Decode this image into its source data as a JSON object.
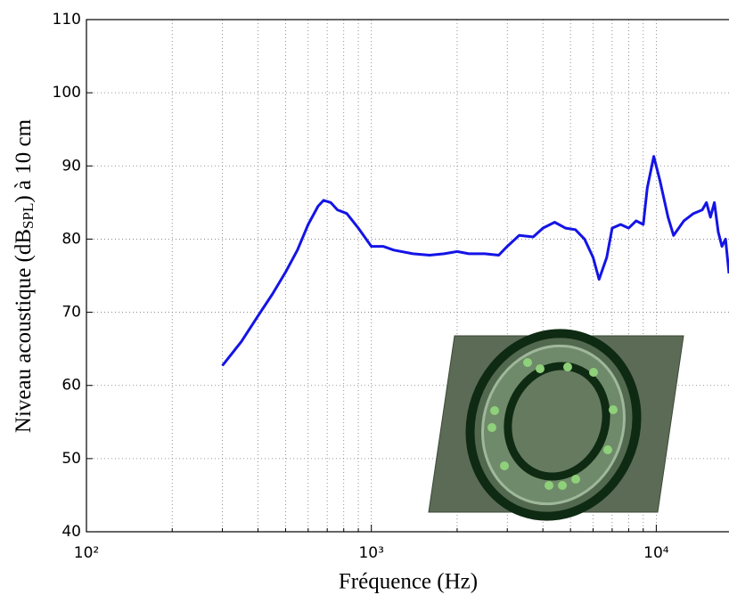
{
  "chart_data": {
    "type": "line",
    "xlabel": "Fréquence (Hz)",
    "ylabel": {
      "main": "Niveau acoustique (dB",
      "subscript": "SPL",
      "rest": ") à 10 cm"
    },
    "xscale": "log",
    "xlim": [
      100,
      18000
    ],
    "ylim": [
      40,
      110
    ],
    "xticks": [
      {
        "value": 100,
        "label": "10²"
      },
      {
        "value": 1000,
        "label": "10³"
      },
      {
        "value": 10000,
        "label": "10⁴"
      }
    ],
    "xminorticks": [
      200,
      300,
      400,
      500,
      600,
      700,
      800,
      900,
      2000,
      3000,
      4000,
      5000,
      6000,
      7000,
      8000,
      9000
    ],
    "yticks": [
      40,
      50,
      60,
      70,
      80,
      90,
      100,
      110
    ],
    "grid": true,
    "series": [
      {
        "color": "#1414e6",
        "x": [
          300,
          350,
          400,
          450,
          500,
          550,
          600,
          650,
          680,
          720,
          760,
          820,
          900,
          1000,
          1100,
          1200,
          1400,
          1600,
          1800,
          2000,
          2200,
          2500,
          2800,
          3000,
          3300,
          3700,
          4000,
          4400,
          4800,
          5200,
          5600,
          6000,
          6300,
          6700,
          7000,
          7500,
          8000,
          8500,
          9000,
          9300,
          9800,
          10300,
          11000,
          11500,
          12500,
          13500,
          14500,
          15000,
          15500,
          16000,
          16500,
          17000,
          17500,
          18000
        ],
        "values": [
          62.7,
          66,
          69.5,
          72.5,
          75.5,
          78.5,
          82,
          84.5,
          85.3,
          85,
          84,
          83.5,
          81.5,
          79,
          79,
          78.5,
          78,
          77.8,
          78,
          78.3,
          78,
          78,
          77.8,
          79,
          80.5,
          80.3,
          81.5,
          82.3,
          81.5,
          81.3,
          80,
          77.5,
          74.5,
          77.5,
          81.5,
          82,
          81.5,
          82.5,
          82,
          87,
          91.3,
          88,
          83,
          80.5,
          82.5,
          83.5,
          84,
          85,
          83,
          85,
          81,
          79,
          80,
          75.3
        ]
      }
    ]
  }
}
